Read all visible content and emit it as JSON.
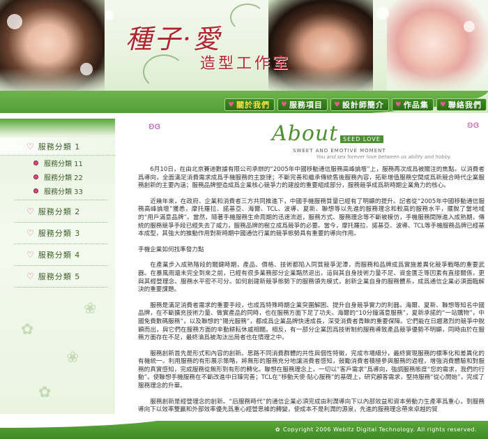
{
  "header": {
    "title": "種子·愛",
    "subtitle": "造型工作室"
  },
  "nav": {
    "items": [
      {
        "label": "關於我們",
        "active": true
      },
      {
        "label": "服務項目",
        "active": false
      },
      {
        "label": "設計師簡介",
        "active": false
      },
      {
        "label": "作品集",
        "active": false
      },
      {
        "label": "聯絡我們",
        "active": false
      }
    ]
  },
  "sidebar": {
    "categories": [
      {
        "label": "服務分類 1"
      },
      {
        "label": "服務分類 2"
      },
      {
        "label": "服務分類 3"
      },
      {
        "label": "服務分類 4"
      },
      {
        "label": "服務分類 5"
      }
    ],
    "subitems": [
      {
        "label": "服務分類 11"
      },
      {
        "label": "服務分類 22"
      },
      {
        "label": "服務分類 33"
      }
    ]
  },
  "about": {
    "script": "About",
    "tag": "SEED LOVE",
    "line1": "SWEET AND EMOTIVE MOMENT",
    "line2": "You and sex forever love between us ability and hobby."
  },
  "content": {
    "p1": "6月10日，在由北京賽迪數據有限公司承辦的“2005年中國移動通信服務高峰論壇”上，服務再次成爲被關注的焦點。以消費者爲導向，全面滿足消費需求成爲手機服務的主旋律；不斷完善和繼承傳統售後服務內容，拓新增值服務空間成爲新競合時代企業服務創新的主要內涵；服務品牌塑造成爲企業核心競爭力的建設的重要組成部分，服務競爭成爲新時期企業角力的核心。",
    "p2": "近幾年來，在政府、企業和消費者三方共同推進下，中國手機服務質量已經有了明顯的提升。記者從“2005年中國移動通信服務高峰論壇”獲悉，摩托羅拉、諾基亞、海爾、TCL、波導、夏新、聯想等以先進的服務理念和較高的服務水平，擺脫了當地域的“用戶滿意品牌”。當然，隨著手機服務生命周期的迅速流逝，服務方式、服務理念等不斷被模仿，手機服務間隙進入成熟期，傳統的服務競爭手段已經失去了威力，服務品牌的樹立成爲競爭的必要。當今，摩托羅拉、諾基亞、波導、TCL等手機服務品牌已經基本成型，其強大的推動作用對新時期中國通信行業的競爭態勢具有重要的導向作用。",
    "h1": "手機企業如何找準發力點",
    "p3": "在產業步入成熟階段的關鍵時期，產品、價格、技術都陷入同質競爭泥潭，而服務和品牌成爲實施差異化競爭戰略的重要武器。在暴風雨還未完全到來之前，已經有很多業務部分企業黯然退出，這與其自身技術力量不足、資金匱乏等因素有直接關係，更與其經營理念、服務水平密不可分。如何創建新競爭態勢下的服務領先模式，創新企業自身的服務體系，成爲通信企業必須面臨解決的重要課題。",
    "p4": "服務是滿足消費者需求的重要手段，也成爲特殊時期企業突圍解困、提升自身競爭實力的利器。海爾、夏新、聯想等知名中國品牌，在不斷擴充技術力量、做實產品的同時，也在服務方面下足了功夫。海爾的“10分鐘滿意服務”，夏新承諾的“一站購物”，中國免費數碼服務”，以及聯想的“陽光服務”，都成爲企業品牌快速成長，深受消費者青睞的重要保障。它們能在日趨激烈的競爭中脫穎而出，與它們在服務方面的辛勤耕耘休戚相關。相反，有一部分企業因爲技術制約服務導致產品競爭優勢不明顯，同時由於在服務方面存在不足，最終淪爲被淘汰出局者也在情理之中。",
    "p5": "服務創新首先是形式和內容的創新。思路不同消費群體的共性與個性特徵，完成市場細分，最終實現服務的標準化和差異化的有機統一。利用服務的有形展示策略，將無形的服務充分地讓消費者感知，鼓勵消費者積極參與服務的過程，增強消費體驗和對服務的真實感知，完成服務從無形到有形的轉化。聯想在服務理念上，一切以“客戶需求”爲導向，強調服務態度“您的需求，我們的行動”。使聯想手機服務在不斷改進中日臻完善；TCL在“移動天使·貼心服務”的基礎上，研究顧客需求，堅持服務“從心開始”，完成了服務理念的升華。",
    "p6": "服務創新是經營理念的創新。“后服務時代”的通信企業必須完成由利潤導向下以內部效益和資本勞動力生產率爲重心，到服務導向下以效率雙贏和外部效率優先爲重心經營思維的轉變，使成本不是利潤的源泉，先進的服務理念帶來卓越的貿"
  },
  "footer": {
    "copyright": "Copyright 2006 Webitz Digital Technology. All rights reserved."
  },
  "colors": {
    "brand_red": "#b02630",
    "nav_green": "#2b6e14",
    "accent_yellow": "#ffe046",
    "heart_pink": "#e55b88"
  }
}
